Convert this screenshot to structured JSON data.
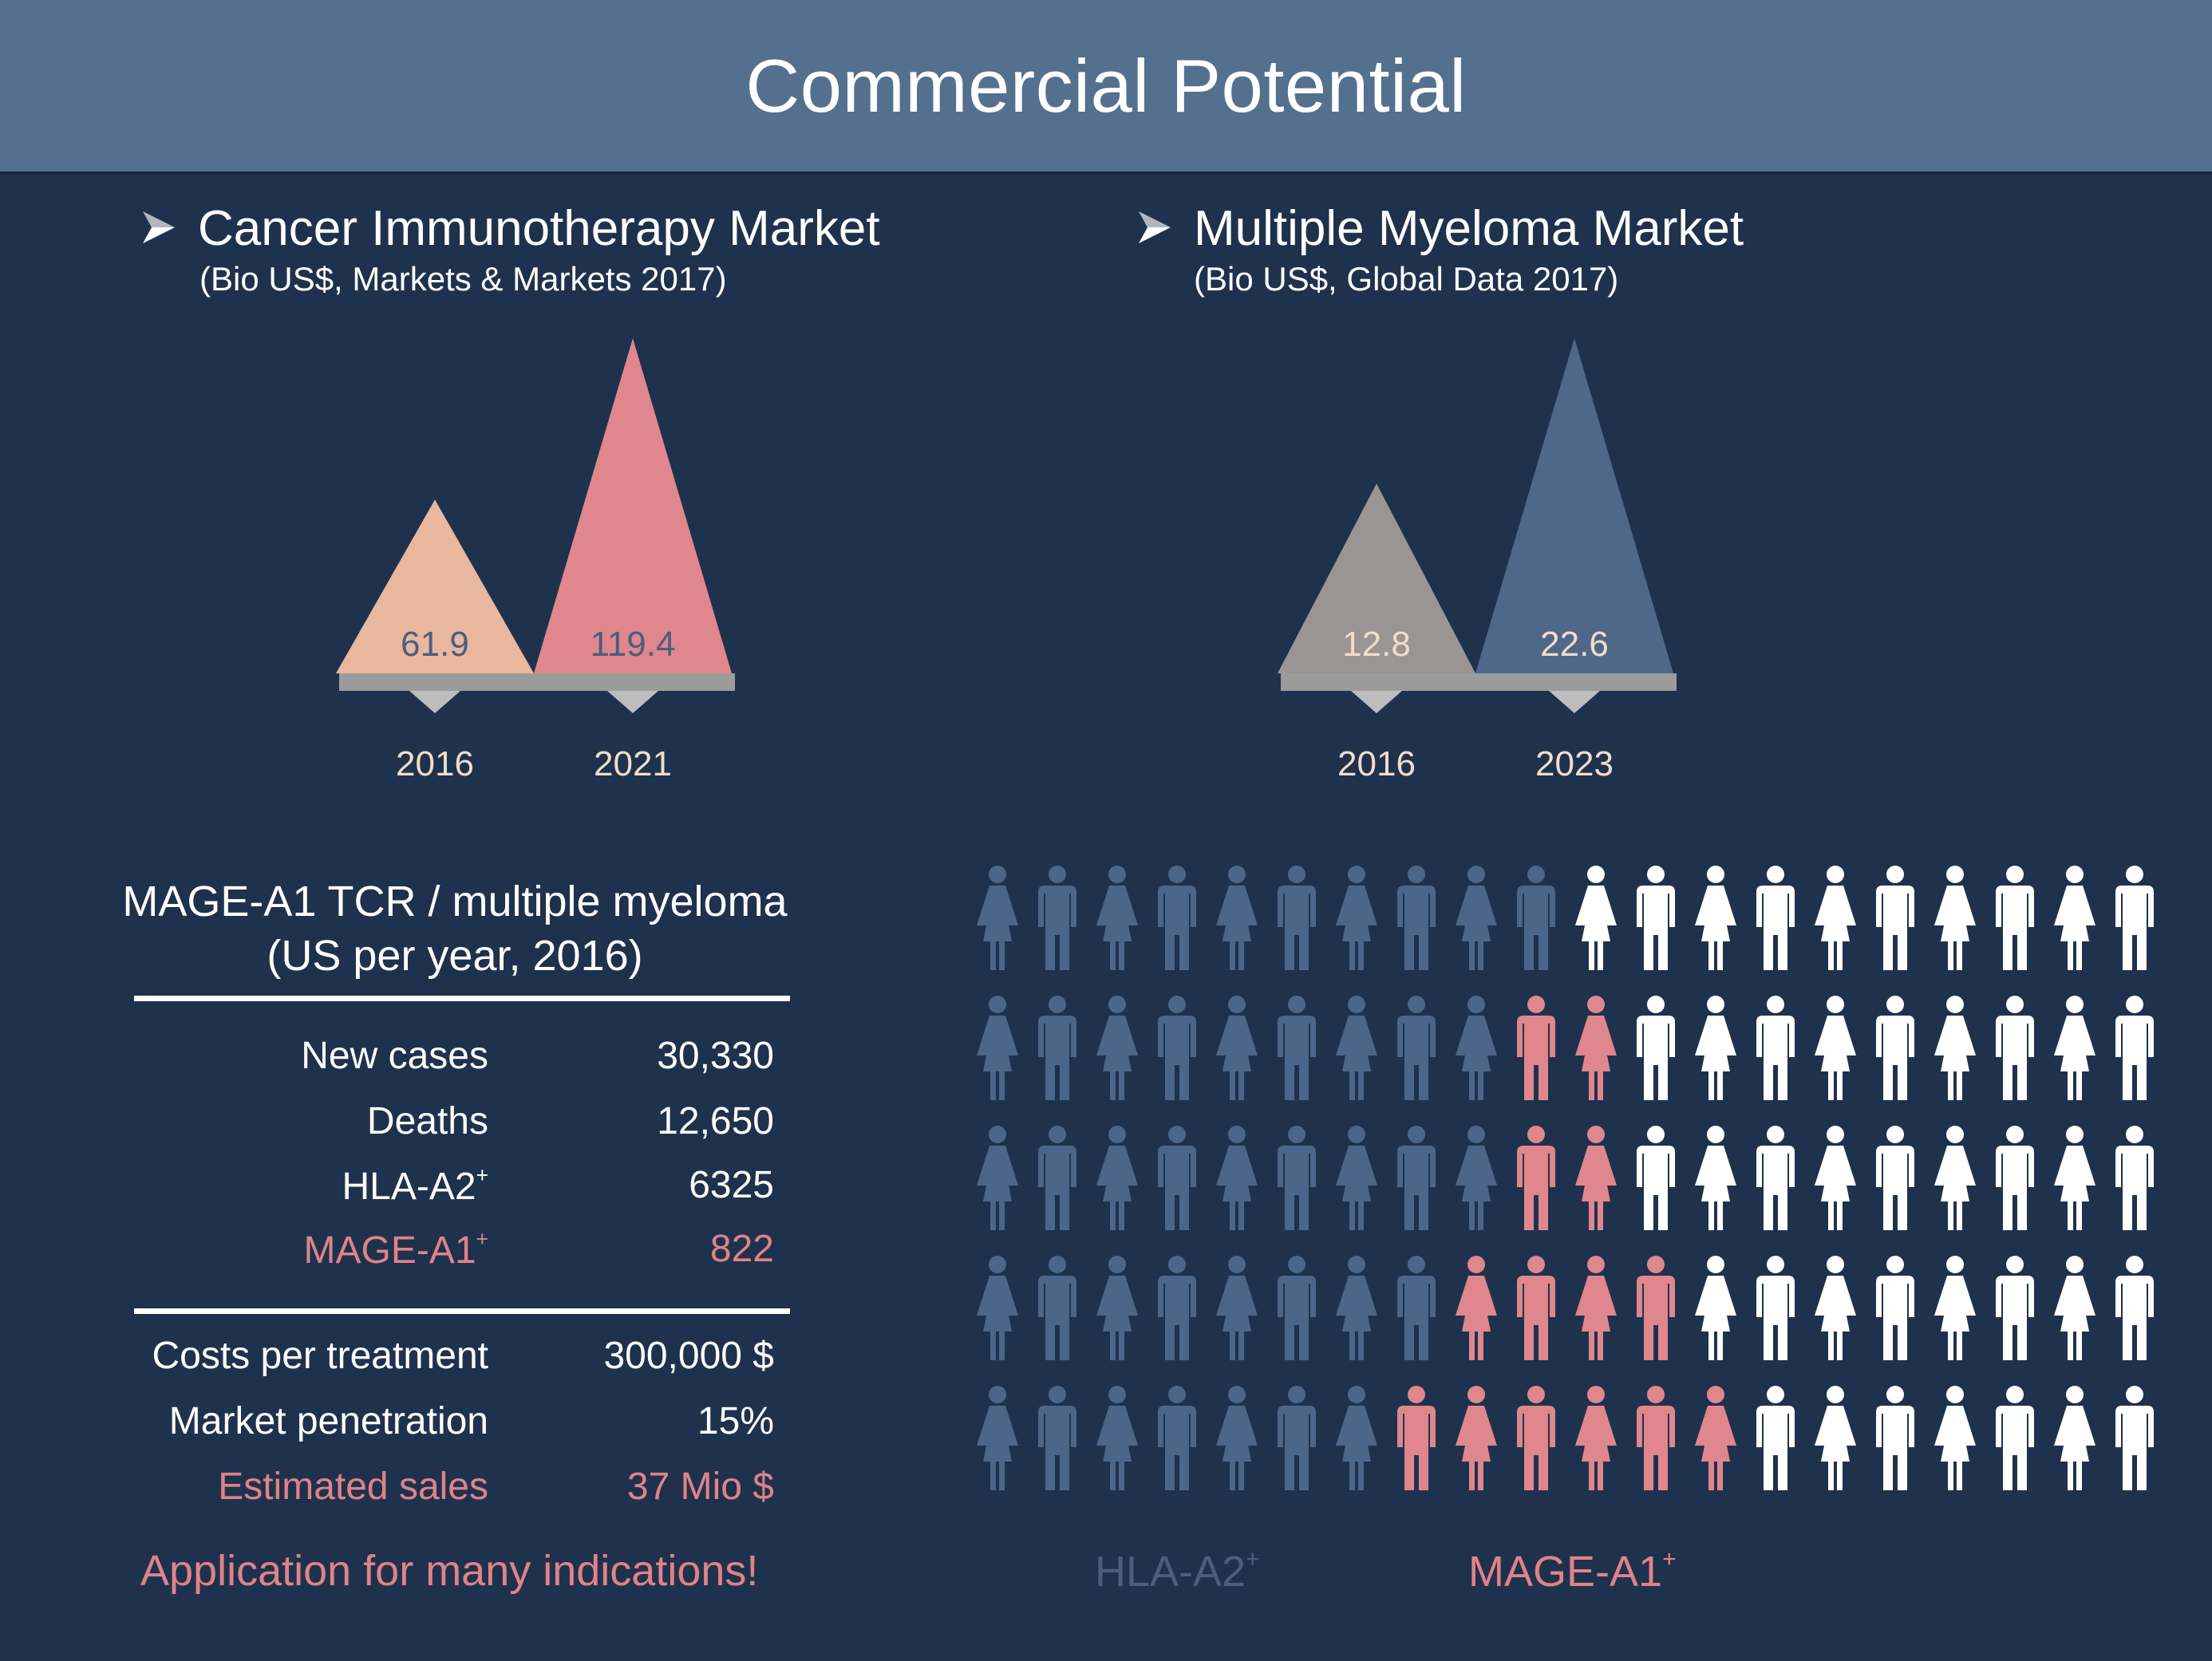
{
  "header": {
    "title": "Commercial Potential"
  },
  "charts": [
    {
      "title": "Cancer Immunotherapy Market",
      "subtitle": "(Bio US$, Markets & Markets 2017)"
    },
    {
      "title": "Multiple Myeloma Market",
      "subtitle": "(Bio US$, Global Data 2017)"
    }
  ],
  "chart_data": [
    {
      "type": "bar",
      "title": "Cancer Immunotherapy Market",
      "subtitle": "(Bio US$, Markets & Markets 2017)",
      "categories": [
        "2016",
        "2021"
      ],
      "values": [
        61.9,
        119.4
      ],
      "value_labels": [
        "61.9",
        "119.4"
      ],
      "colors": [
        "#e9b79d",
        "#df878d"
      ],
      "label_colors": [
        "#4b5e7d",
        "#4b5e7d"
      ],
      "ylim": [
        0,
        119.4
      ]
    },
    {
      "type": "bar",
      "title": "Multiple Myeloma Market",
      "subtitle": "(Bio US$, Global Data 2017)",
      "categories": [
        "2016",
        "2023"
      ],
      "values": [
        12.8,
        22.6
      ],
      "value_labels": [
        "12.8",
        "22.6"
      ],
      "colors": [
        "#9a9593",
        "#4f6889"
      ],
      "label_colors": [
        "#f1ddc9",
        "#f1ddc9"
      ],
      "ylim": [
        0,
        22.6
      ]
    }
  ],
  "table": {
    "title_line1": "MAGE-A1 TCR / multiple myeloma",
    "title_line2": "(US per year, 2016)",
    "rows_top": [
      {
        "label": "New cases",
        "sup": "",
        "value": "30,330"
      },
      {
        "label": "Deaths",
        "sup": "",
        "value": "12,650"
      },
      {
        "label": "HLA-A2",
        "sup": "+",
        "value": "6325"
      },
      {
        "label": "MAGE-A1",
        "sup": "+",
        "value": "822"
      }
    ],
    "rows_bottom": [
      {
        "label": "Costs per treatment",
        "value": "300,000 $"
      },
      {
        "label": "Market penetration",
        "value": "15%"
      },
      {
        "label": "Estimated sales",
        "value": "37 Mio $"
      }
    ],
    "footer": "Application for many indications!"
  },
  "pictogram": {
    "rows": 5,
    "cols": 20,
    "counts_per_row": [
      {
        "hla": 10,
        "mage": 0
      },
      {
        "hla": 9,
        "mage": 2
      },
      {
        "hla": 9,
        "mage": 2
      },
      {
        "hla": 8,
        "mage": 4
      },
      {
        "hla": 7,
        "mage": 6
      }
    ],
    "colors": {
      "hla": "#4b6688",
      "mage": "#df878d",
      "other": "#ffffff"
    },
    "legend": [
      {
        "label": "HLA-A2",
        "sup": "+",
        "color": "#4b5e7d"
      },
      {
        "label": "MAGE-A1",
        "sup": "+",
        "color": "#df8389"
      }
    ]
  },
  "colors": {
    "background": "#1f324d",
    "header": "#53708f",
    "accent_pink": "#df8389",
    "base_gray": "#9b9b9b"
  }
}
